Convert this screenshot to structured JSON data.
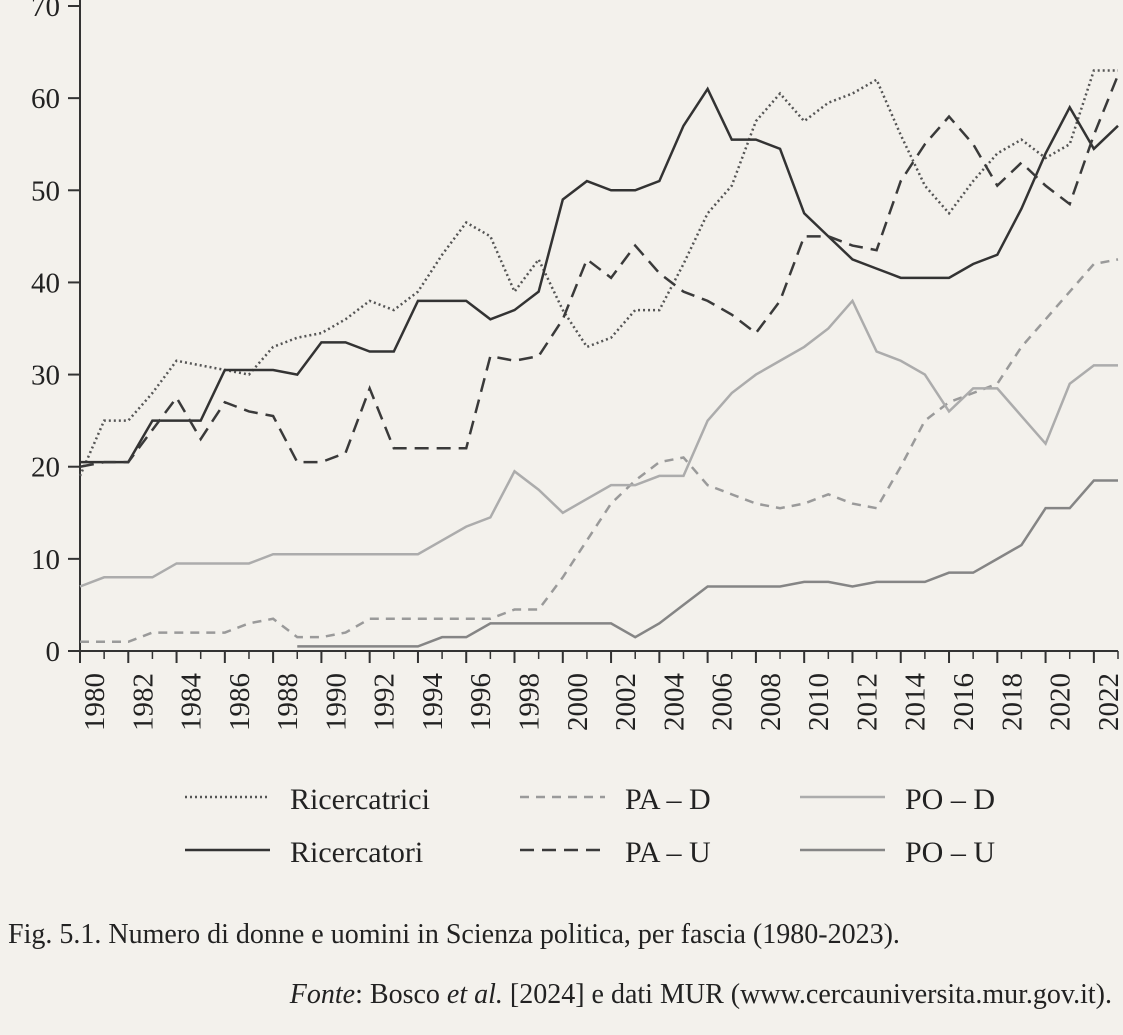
{
  "chart_data": {
    "type": "line",
    "xlim": [
      1980,
      2023
    ],
    "xticks": [
      1980,
      1982,
      1984,
      1986,
      1988,
      1990,
      1992,
      1994,
      1996,
      1998,
      2000,
      2002,
      2004,
      2006,
      2008,
      2010,
      2012,
      2014,
      2016,
      2018,
      2020,
      2022
    ],
    "ylim": [
      0,
      70
    ],
    "yticks": [
      0,
      10,
      20,
      30,
      40,
      50,
      60,
      70
    ],
    "x": [
      1980,
      1981,
      1982,
      1983,
      1984,
      1985,
      1986,
      1987,
      1988,
      1989,
      1990,
      1991,
      1992,
      1993,
      1994,
      1995,
      1996,
      1997,
      1998,
      1999,
      2000,
      2001,
      2002,
      2003,
      2004,
      2005,
      2006,
      2007,
      2008,
      2009,
      2010,
      2011,
      2012,
      2013,
      2014,
      2015,
      2016,
      2017,
      2018,
      2019,
      2020,
      2021,
      2022,
      2023
    ],
    "series": [
      {
        "name": "Ricercatrici",
        "color": "#555555",
        "dash": "2 3",
        "values": [
          19,
          25,
          25,
          28,
          31.5,
          31,
          30.5,
          30,
          33,
          34,
          34.5,
          36,
          38,
          37,
          39,
          43,
          46.5,
          45,
          39,
          42.5,
          37,
          33,
          34,
          37,
          37,
          42,
          47.5,
          50.5,
          57.5,
          60.5,
          57.5,
          59.5,
          60.5,
          62,
          56,
          50.5,
          47.5,
          51,
          54,
          55.5,
          53.5,
          55,
          63,
          63
        ]
      },
      {
        "name": "PA – D",
        "color": "#9a9a9a",
        "dash": "9 7",
        "values": [
          1,
          1,
          1,
          2,
          2,
          2,
          2,
          3,
          3.5,
          1.5,
          1.5,
          2,
          3.5,
          3.5,
          3.5,
          3.5,
          3.5,
          3.5,
          4.5,
          4.5,
          8,
          12,
          16,
          18.5,
          20.5,
          21,
          18,
          17,
          16,
          15.5,
          16,
          17,
          16,
          15.5,
          20,
          25,
          27,
          28,
          29,
          33,
          36,
          39,
          42,
          42.5
        ]
      },
      {
        "name": "PO – D",
        "color": "#acacac",
        "dash": "",
        "values": [
          7,
          8,
          8,
          8,
          9.5,
          9.5,
          9.5,
          9.5,
          10.5,
          10.5,
          10.5,
          10.5,
          10.5,
          10.5,
          10.5,
          12,
          13.5,
          14.5,
          19.5,
          17.5,
          15,
          16.5,
          18,
          18,
          19,
          19,
          25,
          28,
          30,
          31.5,
          33,
          35,
          38,
          32.5,
          31.5,
          30,
          26,
          28.5,
          28.5,
          25.5,
          22.5,
          29,
          31,
          31
        ]
      },
      {
        "name": "Ricercatori",
        "color": "#333333",
        "dash": "",
        "values": [
          20.5,
          20.5,
          20.5,
          25,
          25,
          25,
          30.5,
          30.5,
          30.5,
          30,
          33.5,
          33.5,
          32.5,
          32.5,
          38,
          38,
          38,
          36,
          37,
          39,
          49,
          51,
          50,
          50,
          51,
          57,
          61,
          55.5,
          55.5,
          54.5,
          47.5,
          45,
          42.5,
          41.5,
          40.5,
          40.5,
          40.5,
          42,
          43,
          48,
          54,
          59,
          54.5,
          57
        ]
      },
      {
        "name": "PA – U",
        "color": "#3a3a3a",
        "dash": "14 8",
        "values": [
          20,
          20.5,
          20.5,
          24,
          27.5,
          23,
          27,
          26,
          25.5,
          20.5,
          20.5,
          21.5,
          28.5,
          22,
          22,
          22,
          22,
          32,
          31.5,
          32,
          36,
          42.5,
          40.5,
          44,
          41,
          39,
          38,
          36.5,
          34.5,
          38,
          45,
          45,
          44,
          43.5,
          51,
          55,
          58,
          55,
          50.5,
          53,
          50.5,
          48.5,
          56,
          62.5
        ]
      },
      {
        "name": "PO – U",
        "color": "#858585",
        "dash": "",
        "values": [
          null,
          null,
          null,
          null,
          null,
          null,
          null,
          null,
          null,
          0.5,
          0.5,
          0.5,
          0.5,
          0.5,
          0.5,
          1.5,
          1.5,
          3,
          3,
          3,
          3,
          3,
          3,
          1.5,
          3,
          5,
          7,
          7,
          7,
          7,
          7.5,
          7.5,
          7,
          7.5,
          7.5,
          7.5,
          8.5,
          8.5,
          10,
          11.5,
          15.5,
          15.5,
          18.5,
          18.5
        ]
      }
    ],
    "caption": "Fig. 5.1.  Numero di donne e uomini in Scienza politica, per fascia (1980-2023).",
    "source": [
      {
        "text": "Fonte",
        "italic": true
      },
      {
        "text": ": Bosco ",
        "italic": false
      },
      {
        "text": "et al.",
        "italic": true
      },
      {
        "text": " [2024] e dati MUR (www.cercauniversita.mur.gov.it).",
        "italic": false
      }
    ]
  }
}
